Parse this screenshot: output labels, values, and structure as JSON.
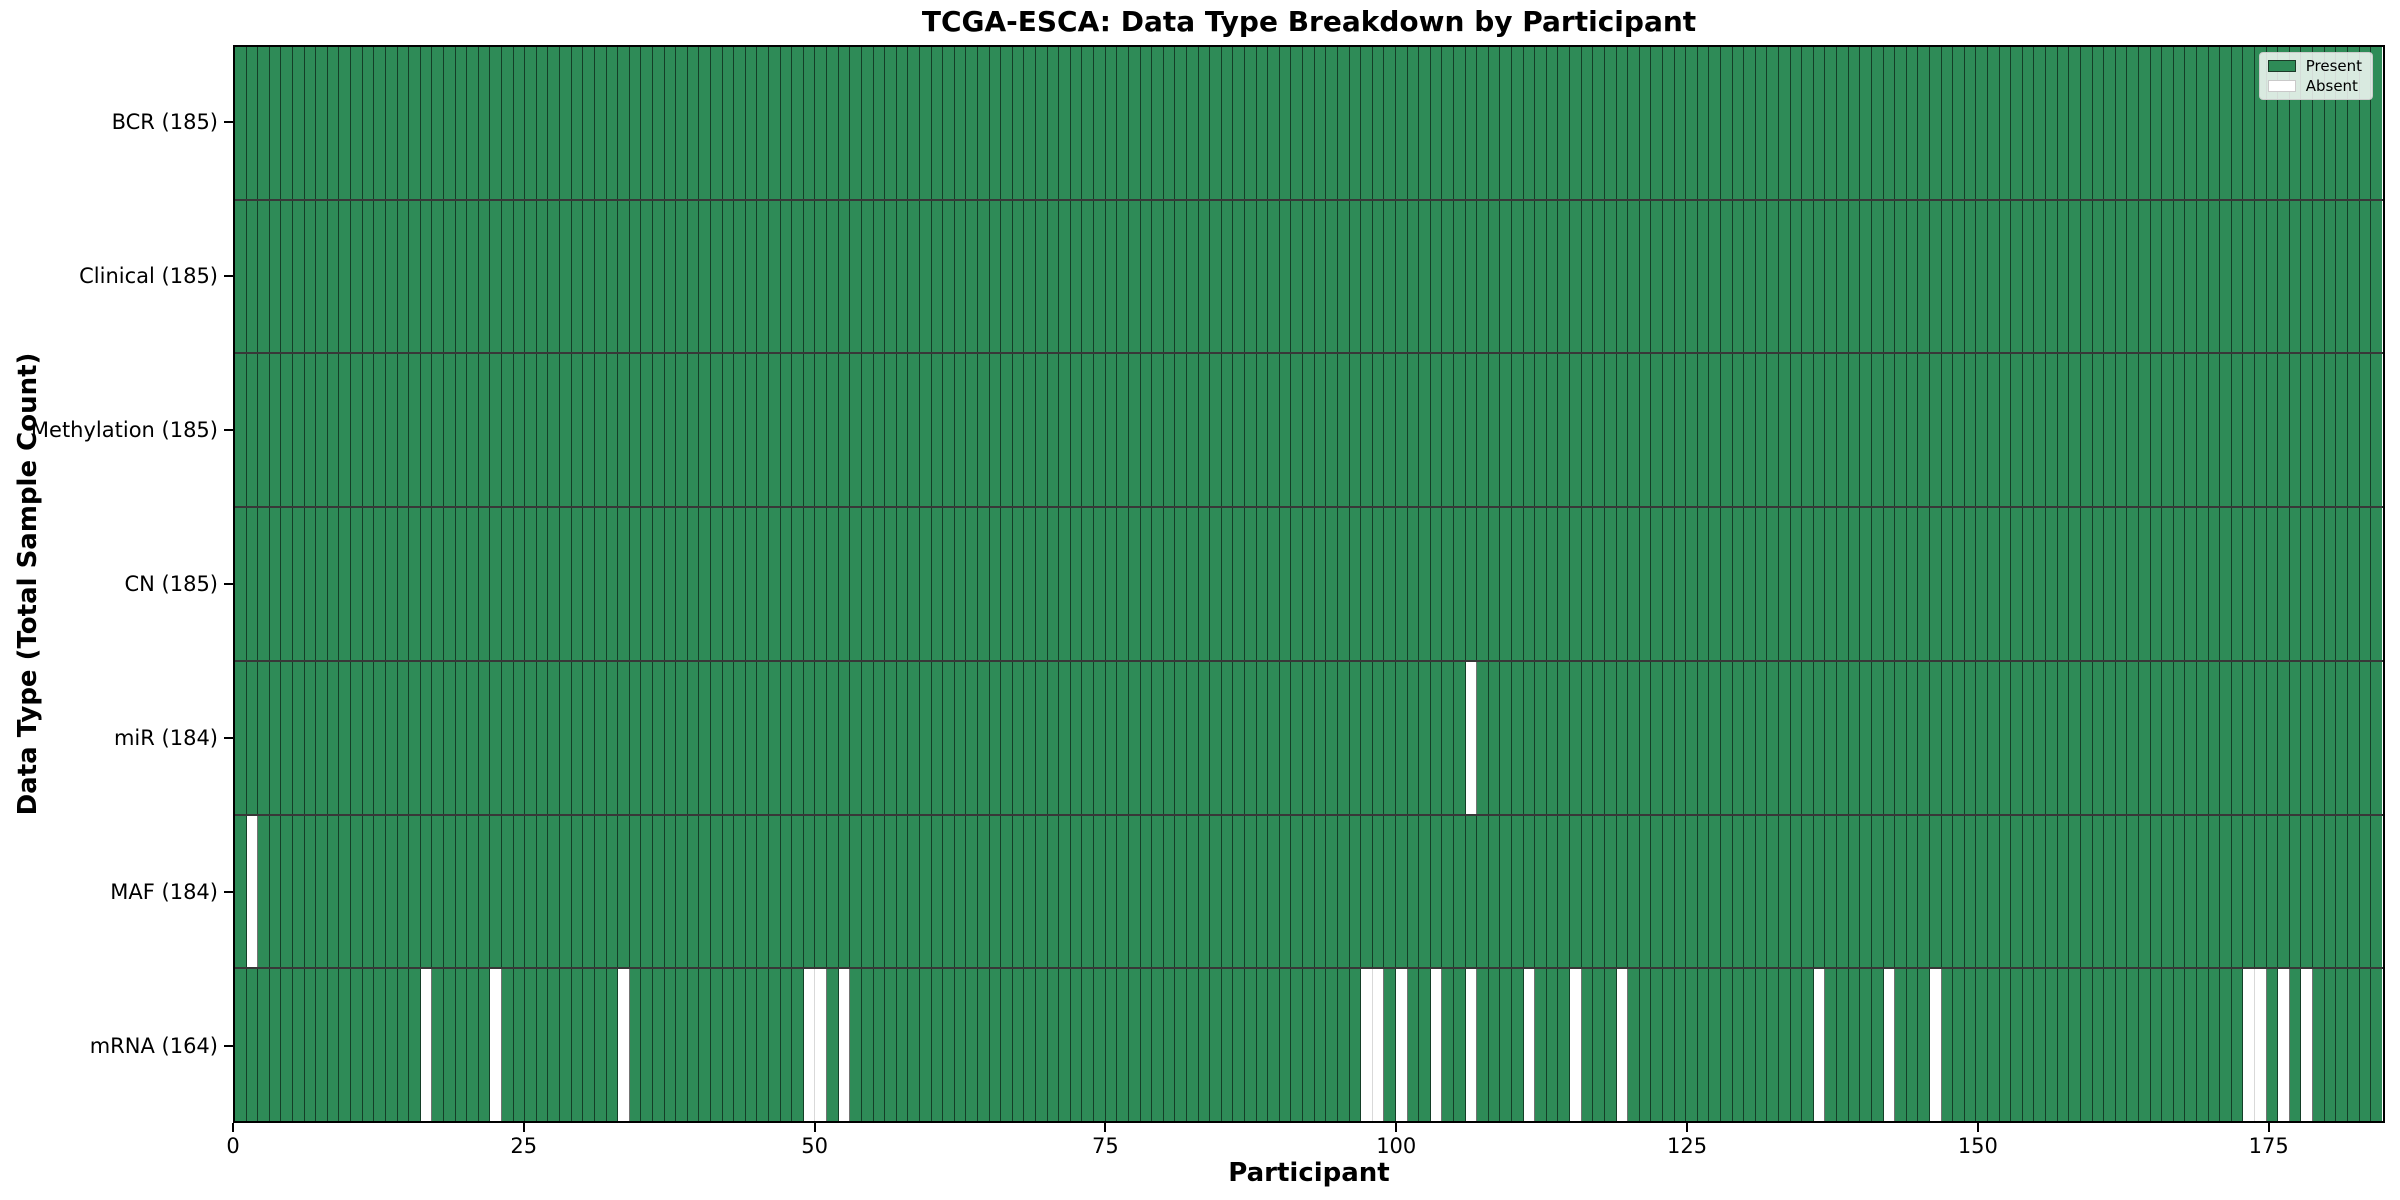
{
  "title": "TCGA-ESCA: Data Type Breakdown by Participant",
  "xlabel": "Participant",
  "ylabel": "Data Type (Total Sample Count)",
  "legend": {
    "entries": [
      {
        "label": "Present",
        "color": "#2e8b57"
      },
      {
        "label": "Absent",
        "color": "#ffffff"
      }
    ]
  },
  "colors": {
    "present": "#2e8b57",
    "absent": "#ffffff",
    "bar_edge": "rgba(0,0,0,0.55)",
    "row_separator": "rgba(0,0,0,0.78)",
    "spine": "#000000"
  },
  "chart_data": {
    "type": "heatmap",
    "title": "TCGA-ESCA: Data Type Breakdown by Participant",
    "xlabel": "Participant",
    "ylabel": "Data Type (Total Sample Count)",
    "x_range": [
      0,
      185
    ],
    "n_participants": 185,
    "x_ticks": [
      0,
      25,
      50,
      75,
      100,
      125,
      150,
      175
    ],
    "grid": false,
    "legend_position": "upper right",
    "cell_indexing": "0-based participant index; bar i spans [i, i+1] on the x-axis",
    "rows": [
      {
        "label": "BCR (185)",
        "data_type": "BCR",
        "present_count": 185,
        "absent_participants": []
      },
      {
        "label": "Clinical (185)",
        "data_type": "Clinical",
        "present_count": 185,
        "absent_participants": []
      },
      {
        "label": "Methylation (185)",
        "data_type": "Methylation",
        "present_count": 185,
        "absent_participants": []
      },
      {
        "label": "CN (185)",
        "data_type": "CN",
        "present_count": 185,
        "absent_participants": []
      },
      {
        "label": "miR (184)",
        "data_type": "miR",
        "present_count": 184,
        "absent_participants": [
          106
        ]
      },
      {
        "label": "MAF (184)",
        "data_type": "MAF",
        "present_count": 184,
        "absent_participants": [
          1
        ]
      },
      {
        "label": "mRNA (164)",
        "data_type": "mRNA",
        "present_count": 164,
        "absent_participants": [
          16,
          22,
          33,
          49,
          50,
          52,
          97,
          98,
          100,
          103,
          106,
          111,
          115,
          119,
          136,
          142,
          146,
          173,
          174,
          176,
          178
        ]
      }
    ]
  }
}
